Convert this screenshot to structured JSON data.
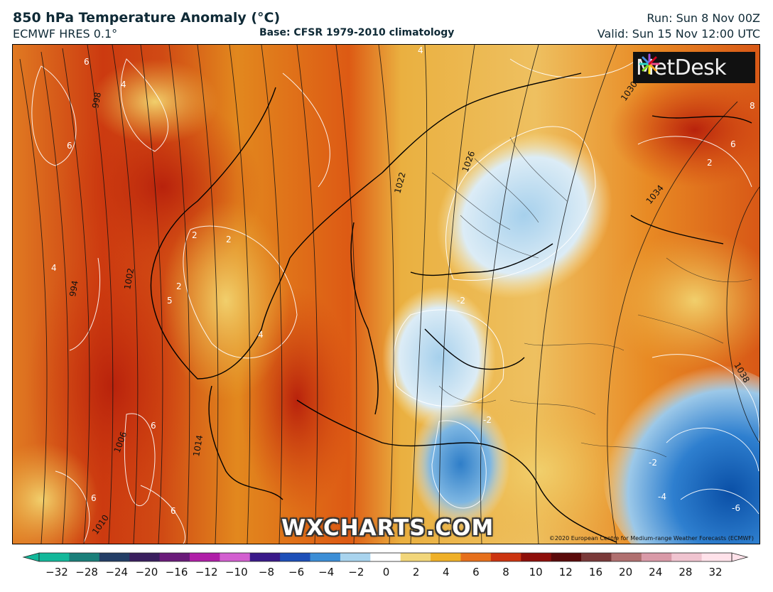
{
  "header": {
    "title": "850 hPa Temperature Anomaly (°C)",
    "model": "ECMWF HRES 0.1°",
    "base": "Base: CFSR 1979-2010 climatology",
    "run": "Run: Sun 8 Nov 00Z",
    "valid": "Valid: Sun 15 Nov 12:00 UTC"
  },
  "branding": {
    "logo": "MetDesk",
    "watermark": "WXCHARTS.COM",
    "copyright": "©2020 European Centre for Medium-range Weather Forecasts (ECMWF)"
  },
  "isobars": [
    "998",
    "1002",
    "1006",
    "1010",
    "1014",
    "1022",
    "1026",
    "1030",
    "1034",
    "1038",
    "994"
  ],
  "anomaly_labels": [
    "6",
    "4",
    "6",
    "4",
    "2",
    "2",
    "5",
    "4",
    "2",
    "6",
    "6",
    "6",
    "4",
    "-2",
    "-2",
    "-2",
    "-4",
    "-6",
    "8",
    "6",
    "2"
  ],
  "colorbar": {
    "ticks": [
      "−32",
      "−28",
      "−24",
      "−20",
      "−16",
      "−12",
      "−10",
      "−8",
      "−6",
      "−4",
      "−2",
      "0",
      "2",
      "4",
      "6",
      "8",
      "10",
      "12",
      "16",
      "20",
      "24",
      "28",
      "32"
    ],
    "colors": [
      "#13b89a",
      "#1a7f7a",
      "#233e66",
      "#3a1f5e",
      "#6a1b7a",
      "#b01ea8",
      "#d35fd0",
      "#3a1a8a",
      "#1d4fb8",
      "#3c8ed6",
      "#a9d4ee",
      "#ffffff",
      "#f2d67a",
      "#efb028",
      "#e6701c",
      "#cc3410",
      "#8e0f0a",
      "#5a0a0a",
      "#7a3a3a",
      "#b07070",
      "#d99aa8",
      "#f0c4d0",
      "#ffe2ea"
    ]
  }
}
